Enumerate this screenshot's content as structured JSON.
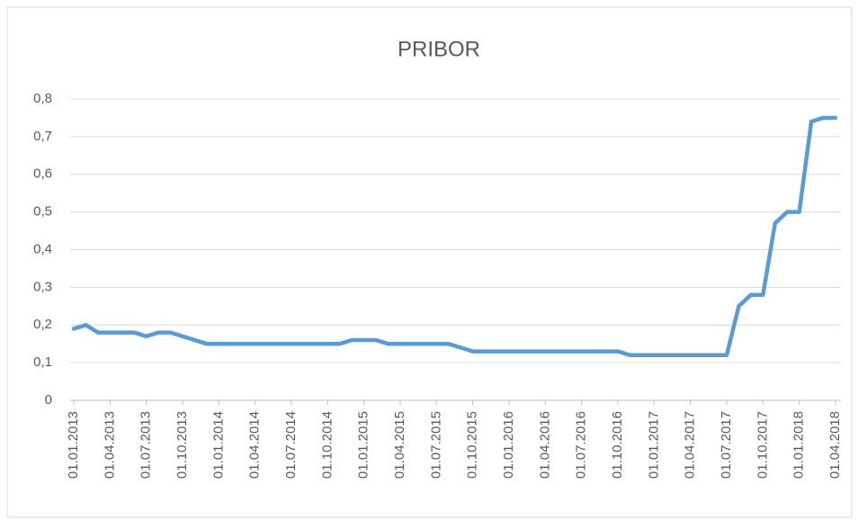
{
  "chart_data": {
    "type": "line",
    "title": "PRIBOR",
    "categories": [
      "01.01.2013",
      null,
      null,
      "01.04.2013",
      null,
      null,
      "01.07.2013",
      null,
      null,
      "01.10.2013",
      null,
      null,
      "01.01.2014",
      null,
      null,
      "01.04.2014",
      null,
      null,
      "01.07.2014",
      null,
      null,
      "01.10.2014",
      null,
      null,
      "01.01.2015",
      null,
      null,
      "01.04.2015",
      null,
      null,
      "01.07.2015",
      null,
      null,
      "01.10.2015",
      null,
      null,
      "01.01.2016",
      null,
      null,
      "01.04.2016",
      null,
      null,
      "01.07.2016",
      null,
      null,
      "01.10.2016",
      null,
      null,
      "01.01.2017",
      null,
      null,
      "01.04.2017",
      null,
      null,
      "01.07.2017",
      null,
      null,
      "01.10.2017",
      null,
      null,
      "01.01.2018",
      null,
      null,
      "01.04.2018"
    ],
    "series": [
      {
        "name": "PRIBOR",
        "color": "#5b9bd5",
        "values": [
          0.19,
          0.2,
          0.18,
          0.18,
          0.18,
          0.18,
          0.17,
          0.18,
          0.18,
          0.17,
          0.16,
          0.15,
          0.15,
          0.15,
          0.15,
          0.15,
          0.15,
          0.15,
          0.15,
          0.15,
          0.15,
          0.15,
          0.15,
          0.16,
          0.16,
          0.16,
          0.15,
          0.15,
          0.15,
          0.15,
          0.15,
          0.15,
          0.14,
          0.13,
          0.13,
          0.13,
          0.13,
          0.13,
          0.13,
          0.13,
          0.13,
          0.13,
          0.13,
          0.13,
          0.13,
          0.13,
          0.12,
          0.12,
          0.12,
          0.12,
          0.12,
          0.12,
          0.12,
          0.12,
          0.12,
          0.25,
          0.28,
          0.28,
          0.47,
          0.5,
          0.5,
          0.74,
          0.75,
          0.75
        ]
      }
    ],
    "ylim": [
      0,
      0.8
    ],
    "yticks": [
      0,
      {
        "value": 0.1,
        "label": "0,1"
      },
      {
        "value": 0.2,
        "label": "0,2"
      },
      {
        "value": 0.3,
        "label": "0,3"
      },
      {
        "value": 0.4,
        "label": "0,4"
      },
      {
        "value": 0.5,
        "label": "0,5"
      },
      {
        "value": 0.6,
        "label": "0,6"
      },
      {
        "value": 0.7,
        "label": "0,7"
      },
      {
        "value": 0.8,
        "label": "0,8"
      }
    ],
    "grid": true
  }
}
